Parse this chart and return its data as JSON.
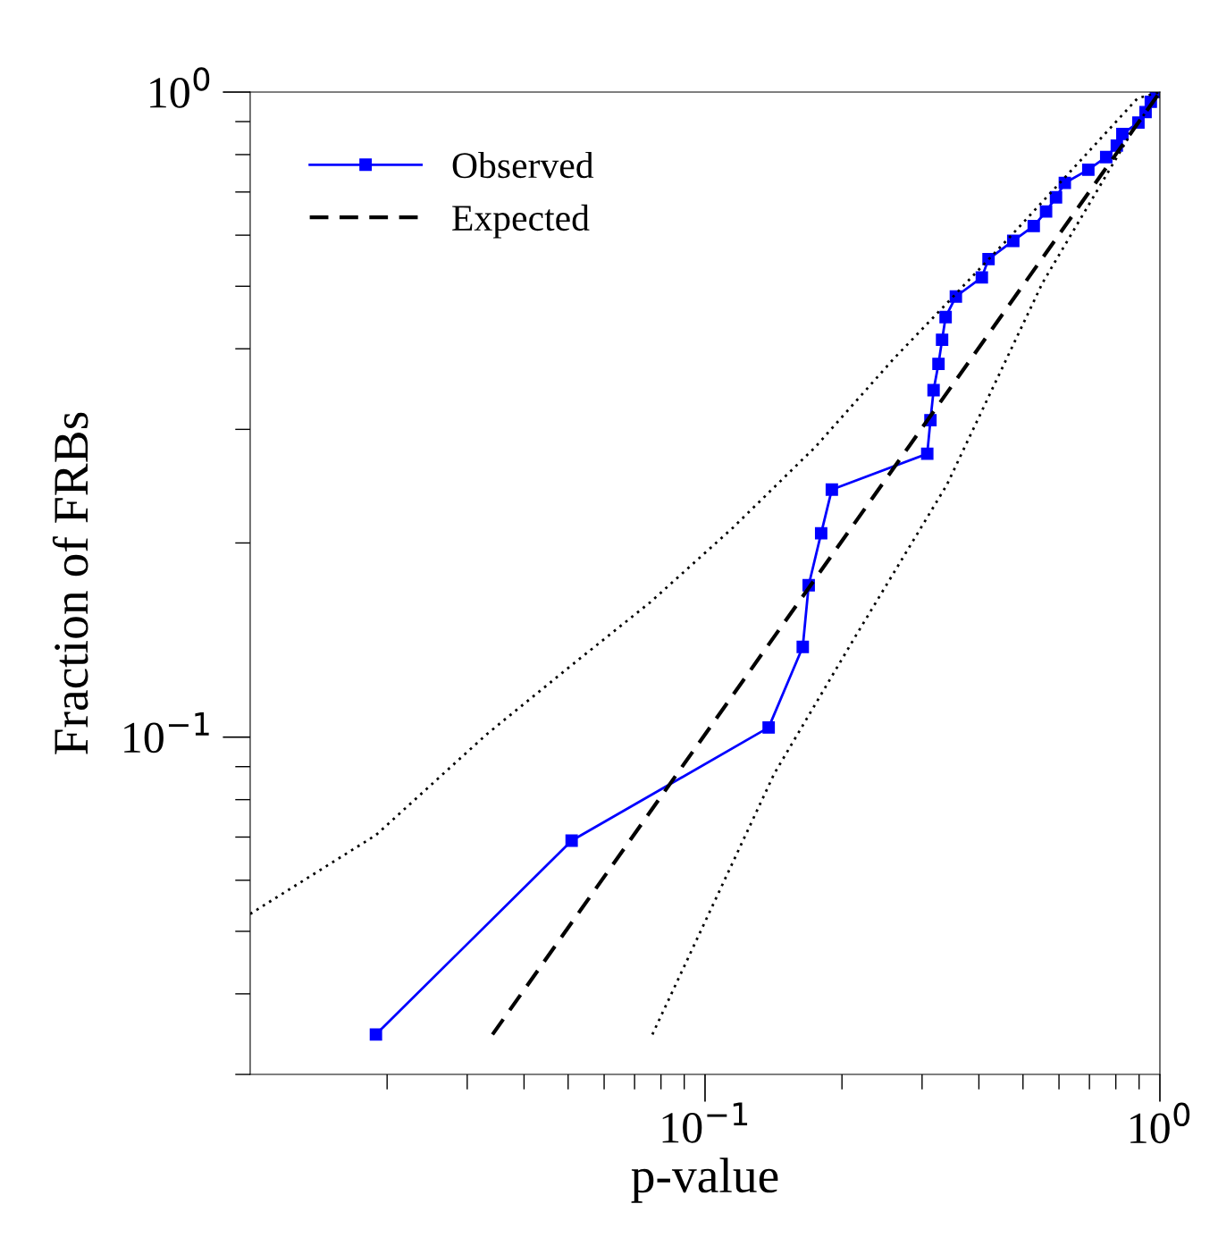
{
  "chart_data": {
    "type": "line",
    "xlabel": "p-value",
    "ylabel": "Fraction of FRBs",
    "log": "xy",
    "grid": false,
    "legend": "top left",
    "xlim": [
      0.01,
      1
    ],
    "ylim": [
      0.03,
      1
    ],
    "xticks": [
      {
        "value": 0.1,
        "label": "10$^{−1}$"
      },
      {
        "value": 1,
        "label": "10$^{0}$"
      }
    ],
    "yticks": [
      {
        "value": 0.1,
        "label": "10$^{−1}$"
      },
      {
        "value": 1,
        "label": "10$^{0}$"
      }
    ],
    "series": [
      {
        "name": "Observed",
        "color": "#0000ff",
        "marker": "square",
        "line_style": "solid",
        "x": [
          0.0189,
          0.0509,
          0.138,
          0.164,
          0.169,
          0.18,
          0.19,
          0.308,
          0.313,
          0.318,
          0.326,
          0.332,
          0.338,
          0.356,
          0.406,
          0.42,
          0.476,
          0.528,
          0.562,
          0.591,
          0.618,
          0.696,
          0.762,
          0.804,
          0.827,
          0.897,
          0.93,
          0.955,
          0.98
        ],
        "values": [
          0.0346,
          0.0691,
          0.1035,
          0.138,
          0.172,
          0.207,
          0.242,
          0.275,
          0.31,
          0.345,
          0.379,
          0.413,
          0.448,
          0.482,
          0.516,
          0.551,
          0.588,
          0.62,
          0.653,
          0.687,
          0.723,
          0.758,
          0.793,
          0.826,
          0.861,
          0.897,
          0.931,
          0.966,
          1.0
        ]
      },
      {
        "name": "Expected",
        "color": "#000000",
        "marker": "none",
        "line_style": "dashed",
        "x": [
          0.0341,
          1
        ],
        "values": [
          0.0346,
          1
        ]
      },
      {
        "color": "#000000",
        "marker": "none",
        "line_style": "dotted",
        "x": [
          0.01,
          0.0189,
          0.0331,
          0.05,
          0.0759,
          0.115,
          0.175,
          0.259,
          0.325,
          0.473,
          0.641,
          0.893,
          1
        ],
        "values": [
          0.0532,
          0.0705,
          0.101,
          0.128,
          0.162,
          0.211,
          0.282,
          0.385,
          0.455,
          0.601,
          0.758,
          0.978,
          1
        ]
      },
      {
        "color": "#000000",
        "marker": "none",
        "line_style": "dotted",
        "x": [
          0.0766,
          0.142,
          0.215,
          0.34,
          0.552,
          0.869,
          1
        ],
        "values": [
          0.0346,
          0.0878,
          0.144,
          0.246,
          0.506,
          0.869,
          1
        ]
      }
    ]
  }
}
